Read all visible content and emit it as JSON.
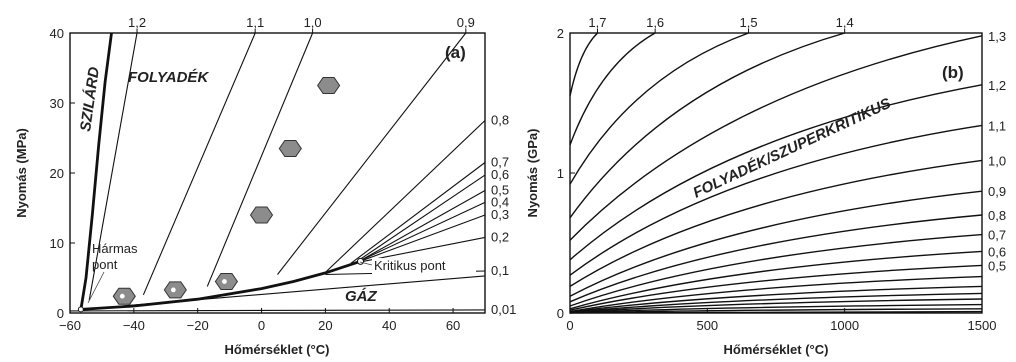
{
  "chart_data": [
    {
      "type": "line",
      "panel_label": "(a)",
      "xlabel": "Hőmérséklet (°C)",
      "ylabel": "Nyomás (MPa)",
      "xlim": [
        -60,
        70
      ],
      "ylim": [
        0,
        40
      ],
      "xticks": [
        "−60",
        "−40",
        "−20",
        "0",
        "20",
        "40",
        "60"
      ],
      "yticks": [
        "0",
        "10",
        "20",
        "30",
        "40"
      ],
      "regions": {
        "solid": "SZILÁRD",
        "liquid": "FOLYADÉK",
        "gas": "GÁZ"
      },
      "annotations": {
        "triple_point": [
          "Hármas",
          "pont"
        ],
        "critical_point": "Kritikus pont"
      },
      "melting_curve": [
        [
          -56.6,
          0.52
        ],
        [
          -55,
          5
        ],
        [
          -53,
          14
        ],
        [
          -51,
          24
        ],
        [
          -49,
          33
        ],
        [
          -47,
          40
        ]
      ],
      "vapor_pressure_curve": [
        [
          -56.6,
          0.52
        ],
        [
          -40,
          1.0
        ],
        [
          -20,
          1.97
        ],
        [
          0,
          3.49
        ],
        [
          10,
          4.5
        ],
        [
          20,
          5.73
        ],
        [
          31,
          7.38
        ]
      ],
      "gas_boundary": [
        [
          -56.6,
          0.52
        ],
        [
          70,
          5.3
        ]
      ],
      "isochores": [
        {
          "density": "1,2",
          "points": [
            [
              -54,
              1.8
            ],
            [
              -39,
              40
            ]
          ]
        },
        {
          "density": "1,1",
          "points": [
            [
              -37,
              2.6
            ],
            [
              -2,
              40
            ]
          ]
        },
        {
          "density": "1,0",
          "points": [
            [
              -17,
              3.8
            ],
            [
              16,
              40
            ]
          ]
        },
        {
          "density": "0,9",
          "points": [
            [
              5,
              5.5
            ],
            [
              64,
              40
            ]
          ]
        },
        {
          "density": "0,8",
          "points": [
            [
              20,
              5.8
            ],
            [
              70,
              27.5
            ]
          ]
        },
        {
          "density": "0,7",
          "points": [
            [
              28,
              7.1
            ],
            [
              70,
              21.5
            ]
          ]
        },
        {
          "density": "0,6",
          "points": [
            [
              30,
              7.4
            ],
            [
              70,
              19.7
            ]
          ]
        },
        {
          "density": "0,5",
          "points": [
            [
              31,
              7.5
            ],
            [
              70,
              17.5
            ]
          ]
        },
        {
          "density": "0,4",
          "points": [
            [
              31,
              7.5
            ],
            [
              70,
              15.8
            ]
          ]
        },
        {
          "density": "0,3",
          "points": [
            [
              31,
              7.4
            ],
            [
              70,
              14.0
            ]
          ]
        },
        {
          "density": "0,2",
          "points": [
            [
              31,
              7.3
            ],
            [
              70,
              10.8
            ]
          ]
        },
        {
          "density": "0,1",
          "points": [
            [
              20,
              5.5
            ],
            [
              70,
              6.0
            ]
          ]
        },
        {
          "density": "0,01",
          "points": [
            [
              -60,
              0.3
            ],
            [
              70,
              0.45
            ]
          ]
        }
      ],
      "markers": [
        [
          -43,
          2.4
        ],
        [
          -27,
          3.3
        ],
        [
          -11,
          4.5
        ],
        [
          0,
          14
        ],
        [
          9,
          23.5
        ],
        [
          21,
          32.5
        ]
      ]
    },
    {
      "type": "line",
      "panel_label": "(b)",
      "region_label": "FOLYADÉK/SZUPERKRITIKUS",
      "xlabel": "Hőmérséklet (°C)",
      "ylabel": "Nyomás (GPa)",
      "xlim": [
        0,
        1500
      ],
      "ylim": [
        0,
        2
      ],
      "xticks": [
        "0",
        "500",
        "1000",
        "1500"
      ],
      "yticks": [
        "0",
        "1",
        "2"
      ],
      "isochores": [
        {
          "density": "1,7",
          "points": [
            [
              0,
              1.55
            ],
            [
              100,
              2.0
            ]
          ]
        },
        {
          "density": "1,6",
          "points": [
            [
              0,
              1.2
            ],
            [
              310,
              2.0
            ]
          ]
        },
        {
          "density": "1,5",
          "points": [
            [
              0,
              0.92
            ],
            [
              650,
              2.0
            ]
          ]
        },
        {
          "density": "1,4",
          "points": [
            [
              0,
              0.68
            ],
            [
              1000,
              2.0
            ]
          ]
        },
        {
          "density": "1,3",
          "points": [
            [
              0,
              0.52
            ],
            [
              1500,
              1.98
            ]
          ]
        },
        {
          "density": "1,2",
          "points": [
            [
              0,
              0.38
            ],
            [
              1500,
              1.63
            ]
          ]
        },
        {
          "density": "1,1",
          "points": [
            [
              0,
              0.27
            ],
            [
              1500,
              1.34
            ]
          ]
        },
        {
          "density": "1,0",
          "points": [
            [
              0,
              0.19
            ],
            [
              1500,
              1.09
            ]
          ]
        },
        {
          "density": "0,9",
          "points": [
            [
              0,
              0.12
            ],
            [
              1500,
              0.87
            ]
          ]
        },
        {
          "density": "0,8",
          "points": [
            [
              0,
              0.08
            ],
            [
              1500,
              0.7
            ]
          ]
        },
        {
          "density": "0,7",
          "points": [
            [
              0,
              0.05
            ],
            [
              1500,
              0.56
            ]
          ]
        },
        {
          "density": "0,6",
          "points": [
            [
              0,
              0.03
            ],
            [
              1500,
              0.44
            ]
          ]
        },
        {
          "density": "0,5",
          "points": [
            [
              0,
              0.02
            ],
            [
              1500,
              0.34
            ]
          ]
        },
        {
          "density": "",
          "points": [
            [
              0,
              0.01
            ],
            [
              1500,
              0.26
            ]
          ]
        },
        {
          "density": "",
          "points": [
            [
              0,
              0.008
            ],
            [
              1500,
              0.19
            ]
          ]
        },
        {
          "density": "",
          "points": [
            [
              0,
              0.005
            ],
            [
              1500,
              0.14
            ]
          ]
        },
        {
          "density": "",
          "points": [
            [
              0,
              0.003
            ],
            [
              1500,
              0.1
            ]
          ]
        },
        {
          "density": "",
          "points": [
            [
              0,
              0.002
            ],
            [
              1500,
              0.06
            ]
          ]
        },
        {
          "density": "",
          "points": [
            [
              0,
              0.001
            ],
            [
              1500,
              0.03
            ]
          ]
        },
        {
          "density": "",
          "points": [
            [
              0,
              0.0005
            ],
            [
              1500,
              0.01
            ]
          ]
        }
      ]
    }
  ],
  "style": {
    "line_color": "#111111",
    "marker_fill": "#8c8c8c",
    "text_color": "#222222"
  }
}
